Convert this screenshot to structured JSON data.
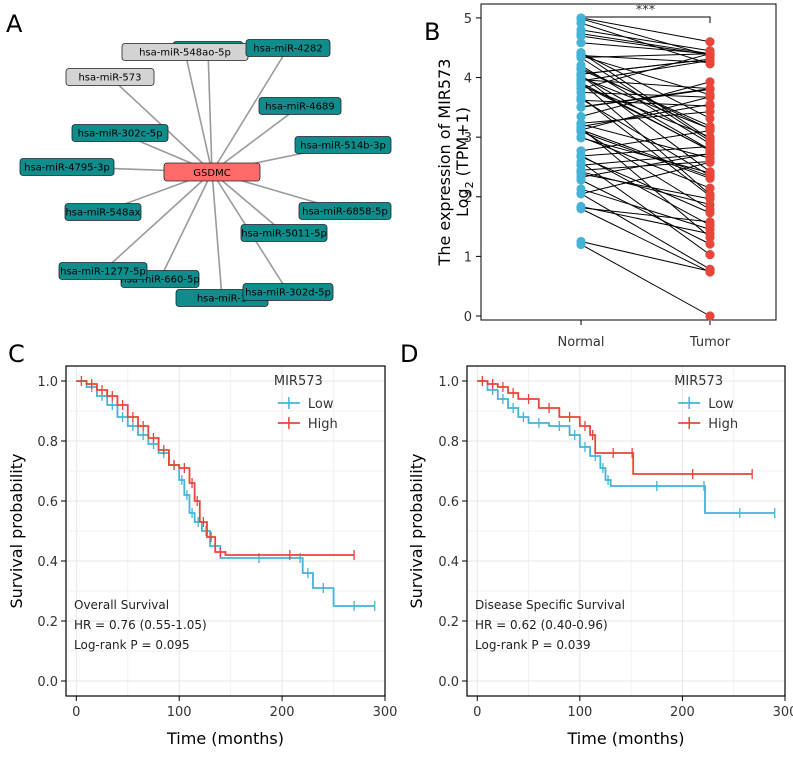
{
  "panel_labels": {
    "a": "A",
    "b": "B",
    "c": "C",
    "d": "D"
  },
  "colors": {
    "node_mir": "#0f8c8c",
    "node_mir_gray": "#d3d3d3",
    "node_gene": "#ff6b6b",
    "normal": "#45b3d8",
    "tumor": "#e8463a",
    "low": "#45b3d8",
    "high": "#e8463a",
    "grid": "#e6e6e6",
    "edge": "#9a9a9a"
  },
  "chart_data": [
    {
      "type": "network",
      "panel": "A",
      "center": "GSDMC",
      "nodes": [
        {
          "label": "hsa-miR-548ao-5p",
          "style": "gray"
        },
        {
          "label": "hsa-miR-573",
          "style": "gray"
        },
        {
          "label": "hsa-miR-4282",
          "style": "teal"
        },
        {
          "label": "hsa-miR-4689",
          "style": "teal"
        },
        {
          "label": "hsa-miR-302c-5p",
          "style": "teal"
        },
        {
          "label": "hsa-miR-514b-3p",
          "style": "teal"
        },
        {
          "label": "hsa-miR-4795-3p",
          "style": "teal"
        },
        {
          "label": "hsa-miR-548ax",
          "style": "teal"
        },
        {
          "label": "hsa-miR-6858-5p",
          "style": "teal"
        },
        {
          "label": "hsa-miR-5011-5p",
          "style": "teal"
        },
        {
          "label": "hsa-miR-1277-5p",
          "style": "teal"
        },
        {
          "label": "hsa-miR-660-5p",
          "style": "teal"
        },
        {
          "label": "hsa-miR-302d-5p",
          "style": "teal"
        },
        {
          "label": "hsa-miR-3",
          "style": "teal"
        },
        {
          "label": "hsa-miR-3",
          "style": "teal"
        }
      ]
    },
    {
      "type": "paired-dot",
      "panel": "B",
      "categories": [
        "Normal",
        "Tumor"
      ],
      "ylabel_line1": "The expression of MIR573",
      "ylabel_line2_main": "Log",
      "ylabel_line2_sub": "2",
      "ylabel_line2_rest": " (TPM+1)",
      "yticks": [
        0,
        1,
        2,
        3,
        4,
        5
      ],
      "ylim": [
        0,
        5.2
      ],
      "significance": "***",
      "normal_range": [
        1.2,
        5.0
      ],
      "tumor_range": [
        0.0,
        4.6
      ],
      "n_pairs": 60
    },
    {
      "type": "kaplan-meier",
      "panel": "C",
      "legend_title": "MIR573",
      "series": [
        {
          "name": "Low",
          "points": [
            [
              0,
              1.0
            ],
            [
              10,
              0.98
            ],
            [
              20,
              0.95
            ],
            [
              30,
              0.92
            ],
            [
              40,
              0.88
            ],
            [
              50,
              0.85
            ],
            [
              60,
              0.82
            ],
            [
              70,
              0.79
            ],
            [
              80,
              0.76
            ],
            [
              90,
              0.72
            ],
            [
              100,
              0.67
            ],
            [
              105,
              0.62
            ],
            [
              110,
              0.56
            ],
            [
              115,
              0.53
            ],
            [
              122,
              0.5
            ],
            [
              130,
              0.45
            ],
            [
              140,
              0.41
            ],
            [
              215,
              0.41
            ],
            [
              220,
              0.36
            ],
            [
              230,
              0.31
            ],
            [
              250,
              0.25
            ],
            [
              290,
              0.25
            ]
          ]
        },
        {
          "name": "High",
          "points": [
            [
              0,
              1.0
            ],
            [
              10,
              0.99
            ],
            [
              20,
              0.97
            ],
            [
              30,
              0.95
            ],
            [
              40,
              0.92
            ],
            [
              50,
              0.88
            ],
            [
              60,
              0.85
            ],
            [
              70,
              0.81
            ],
            [
              80,
              0.77
            ],
            [
              90,
              0.72
            ],
            [
              100,
              0.71
            ],
            [
              110,
              0.66
            ],
            [
              115,
              0.6
            ],
            [
              120,
              0.53
            ],
            [
              127,
              0.48
            ],
            [
              135,
              0.43
            ],
            [
              145,
              0.42
            ],
            [
              270,
              0.42
            ]
          ]
        }
      ],
      "annotation": [
        "Overall Survival",
        "HR = 0.76 (0.55-1.05)",
        "Log-rank P = 0.095"
      ],
      "xlabel": "Time (months)",
      "ylabel": "Survival probability",
      "xlim": [
        -10,
        300
      ],
      "ylim": [
        -0.05,
        1.05
      ],
      "xticks": [
        0,
        100,
        200,
        300
      ],
      "yticks": [
        0.0,
        0.2,
        0.4,
        0.6,
        0.8,
        1.0
      ]
    },
    {
      "type": "kaplan-meier",
      "panel": "D",
      "legend_title": "MIR573",
      "series": [
        {
          "name": "Low",
          "points": [
            [
              0,
              1.0
            ],
            [
              10,
              0.97
            ],
            [
              20,
              0.94
            ],
            [
              30,
              0.91
            ],
            [
              40,
              0.88
            ],
            [
              50,
              0.86
            ],
            [
              70,
              0.85
            ],
            [
              90,
              0.82
            ],
            [
              100,
              0.78
            ],
            [
              110,
              0.75
            ],
            [
              120,
              0.71
            ],
            [
              125,
              0.67
            ],
            [
              130,
              0.65
            ],
            [
              220,
              0.65
            ],
            [
              222,
              0.56
            ],
            [
              290,
              0.56
            ]
          ]
        },
        {
          "name": "High",
          "points": [
            [
              0,
              1.0
            ],
            [
              10,
              0.99
            ],
            [
              20,
              0.98
            ],
            [
              30,
              0.96
            ],
            [
              40,
              0.94
            ],
            [
              60,
              0.91
            ],
            [
              80,
              0.88
            ],
            [
              100,
              0.85
            ],
            [
              110,
              0.82
            ],
            [
              115,
              0.76
            ],
            [
              150,
              0.76
            ],
            [
              152,
              0.69
            ],
            [
              268,
              0.69
            ]
          ]
        }
      ],
      "annotation": [
        "Disease Specific Survival",
        "HR = 0.62 (0.40-0.96)",
        "Log-rank P = 0.039"
      ],
      "xlabel": "Time (months)",
      "ylabel": "Survival probability",
      "xlim": [
        -10,
        300
      ],
      "ylim": [
        -0.05,
        1.05
      ],
      "xticks": [
        0,
        100,
        200,
        300
      ],
      "yticks": [
        0.0,
        0.2,
        0.4,
        0.6,
        0.8,
        1.0
      ]
    }
  ]
}
